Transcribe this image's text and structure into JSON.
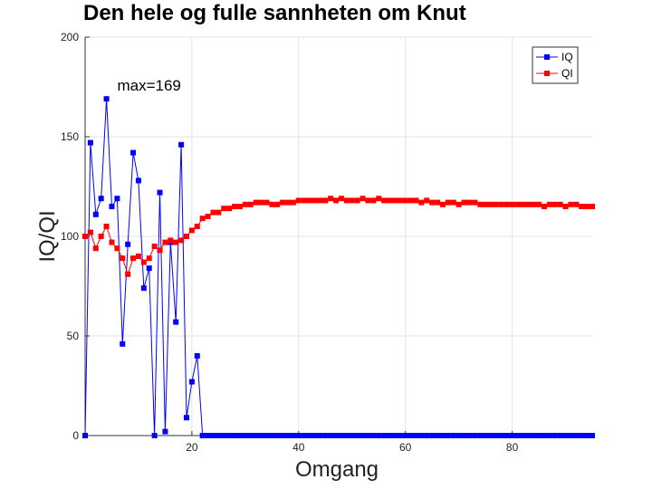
{
  "chart_data": {
    "type": "line",
    "title": "Den hele og fulle sannheten om Knut",
    "xlabel": "Omgang",
    "ylabel": "IQ/QI",
    "xlim": [
      0,
      95
    ],
    "ylim": [
      0,
      200
    ],
    "xticks": [
      20,
      40,
      60,
      80
    ],
    "yticks": [
      0,
      50,
      100,
      150,
      200
    ],
    "grid": true,
    "legend_position": "top-right",
    "annotation": {
      "text": "max=169",
      "x": 5,
      "y": 169
    },
    "series": [
      {
        "name": "IQ",
        "color": "#0000ff",
        "x": [
          0,
          1,
          2,
          3,
          4,
          5,
          6,
          7,
          8,
          9,
          10,
          11,
          12,
          13,
          14,
          15,
          16,
          17,
          18,
          19,
          20,
          21,
          22,
          23,
          24,
          25,
          26,
          27,
          28,
          29,
          30,
          31,
          32,
          33,
          34,
          35,
          36,
          37,
          38,
          39,
          40,
          41,
          42,
          43,
          44,
          45,
          46,
          47,
          48,
          49,
          50,
          51,
          52,
          53,
          54,
          55,
          56,
          57,
          58,
          59,
          60,
          61,
          62,
          63,
          64,
          65,
          66,
          67,
          68,
          69,
          70,
          71,
          72,
          73,
          74,
          75,
          76,
          77,
          78,
          79,
          80,
          81,
          82,
          83,
          84,
          85,
          86,
          87,
          88,
          89,
          90,
          91,
          92,
          93,
          94,
          95
        ],
        "y": [
          0,
          147,
          111,
          119,
          169,
          115,
          119,
          46,
          96,
          142,
          128,
          74,
          84,
          0,
          122,
          2,
          97,
          57,
          146,
          9,
          27,
          40,
          0,
          0,
          0,
          0,
          0,
          0,
          0,
          0,
          0,
          0,
          0,
          0,
          0,
          0,
          0,
          0,
          0,
          0,
          0,
          0,
          0,
          0,
          0,
          0,
          0,
          0,
          0,
          0,
          0,
          0,
          0,
          0,
          0,
          0,
          0,
          0,
          0,
          0,
          0,
          0,
          0,
          0,
          0,
          0,
          0,
          0,
          0,
          0,
          0,
          0,
          0,
          0,
          0,
          0,
          0,
          0,
          0,
          0,
          0,
          0,
          0,
          0,
          0,
          0,
          0,
          0,
          0,
          0,
          0,
          0,
          0,
          0,
          0,
          0
        ]
      },
      {
        "name": "QI",
        "color": "#ff0000",
        "x": [
          0,
          1,
          2,
          3,
          4,
          5,
          6,
          7,
          8,
          9,
          10,
          11,
          12,
          13,
          14,
          15,
          16,
          17,
          18,
          19,
          20,
          21,
          22,
          23,
          24,
          25,
          26,
          27,
          28,
          29,
          30,
          31,
          32,
          33,
          34,
          35,
          36,
          37,
          38,
          39,
          40,
          41,
          42,
          43,
          44,
          45,
          46,
          47,
          48,
          49,
          50,
          51,
          52,
          53,
          54,
          55,
          56,
          57,
          58,
          59,
          60,
          61,
          62,
          63,
          64,
          65,
          66,
          67,
          68,
          69,
          70,
          71,
          72,
          73,
          74,
          75,
          76,
          77,
          78,
          79,
          80,
          81,
          82,
          83,
          84,
          85,
          86,
          87,
          88,
          89,
          90,
          91,
          92,
          93,
          94,
          95
        ],
        "y": [
          100,
          102,
          94,
          100,
          105,
          97,
          94,
          89,
          81,
          89,
          90,
          87,
          89,
          95,
          93,
          97,
          98,
          97,
          98,
          100,
          103,
          105,
          109,
          110,
          112,
          112,
          114,
          114,
          115,
          115,
          116,
          116,
          117,
          117,
          117,
          116,
          116,
          117,
          117,
          117,
          118,
          118,
          118,
          118,
          118,
          118,
          119,
          118,
          119,
          118,
          118,
          118,
          119,
          118,
          118,
          119,
          118,
          118,
          118,
          118,
          118,
          118,
          118,
          117,
          118,
          117,
          117,
          116,
          117,
          117,
          116,
          117,
          117,
          117,
          116,
          116,
          116,
          116,
          116,
          116,
          116,
          116,
          116,
          116,
          116,
          116,
          115,
          116,
          116,
          116,
          115,
          116,
          116,
          115,
          115,
          115
        ]
      }
    ]
  }
}
